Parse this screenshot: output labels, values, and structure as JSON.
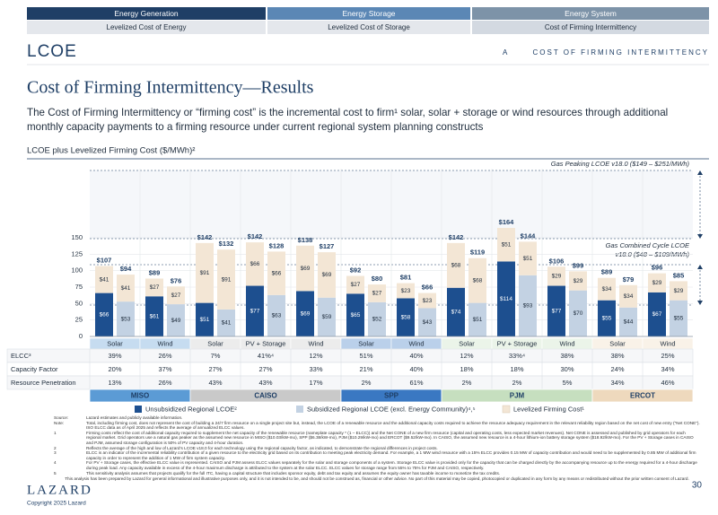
{
  "header": {
    "tabs": [
      "Energy Generation",
      "Energy Storage",
      "Energy System"
    ],
    "subtabs": [
      "Levelized Cost of Energy",
      "Levelized Cost of Storage",
      "Cost of Firming Intermittency"
    ],
    "logo": "LCOE",
    "section": "A",
    "section_title": "COST OF FIRMING INTERMITTENCY"
  },
  "title": "Cost of Firming Intermittency—Results",
  "subtitle": "The Cost of Firming Intermittency or “firming cost” is the incremental cost to firm¹ solar, solar + storage or wind resources through additional monthly capacity payments to a firming resource under current regional system planning constructs",
  "chart_data": {
    "type": "bar",
    "stacked": true,
    "title": "LCOE plus Levelized Firming Cost ($/MWh)²",
    "categories": [
      "Solar",
      "Wind",
      "Solar",
      "PV + Storage",
      "Wind",
      "Solar",
      "Wind",
      "Solar",
      "PV + Storage",
      "Wind",
      "Solar",
      "Wind"
    ],
    "groups": [
      {
        "name": "MISO",
        "size": 2,
        "color": "#5b9bd5"
      },
      {
        "name": "CAISO",
        "size": 3,
        "color": "#c9c9c9"
      },
      {
        "name": "SPP",
        "size": 2,
        "color": "#3a78c2"
      },
      {
        "name": "PJM",
        "size": 3,
        "color": "#c6dfbf"
      },
      {
        "name": "ERCOT",
        "size": 2,
        "color": "#eed9bd"
      }
    ],
    "series": [
      {
        "name": "Unsubsidized Regional LCOE²",
        "color": "#1d4f8f",
        "values": [
          66,
          61,
          51,
          77,
          69,
          65,
          58,
          74,
          114,
          77,
          55,
          67
        ],
        "value_labels": [
          "$66",
          "$61",
          "$51",
          "$77",
          "$69",
          "$65",
          "$58",
          "$74",
          "$114",
          "$77",
          "$55",
          "$67"
        ]
      },
      {
        "name": "Subsidized Regional LCOE (excl. Energy Community)⁴,⁵",
        "color": "#c3d2e3",
        "values": [
          53,
          49,
          41,
          63,
          59,
          52,
          43,
          51,
          93,
          70,
          44,
          55
        ],
        "value_labels": [
          "$53",
          "$49",
          "$41",
          "$63",
          "$59",
          "$52",
          "$43",
          "$51",
          "$93",
          "$70",
          "$44",
          "$55"
        ]
      },
      {
        "name": "Levelized Firming Cost¹",
        "color": "#f3e6d5",
        "values": [
          41,
          27,
          91,
          66,
          69,
          27,
          23,
          68,
          51,
          29,
          34,
          29
        ],
        "value_labels": [
          "$41",
          "$27",
          "$91",
          "$66",
          "$69",
          "$27",
          "$23",
          "$68",
          "$51",
          "$29",
          "$34",
          "$29"
        ]
      }
    ],
    "total_labels": {
      "unsubsidized": [
        "$107",
        "$89",
        "$142",
        "$142",
        "$138",
        "$92",
        "$81",
        "$142",
        "$164",
        "$106",
        "$89",
        "$96"
      ],
      "subsidized": [
        "$94",
        "$76",
        "$132",
        "$128",
        "$127",
        "$80",
        "$66",
        "$119",
        "$144",
        "$99",
        "$79",
        "$85"
      ]
    },
    "annotations": [
      "Gas Peaking LCOE v18.0 ($149 – $251/MWh)",
      "Gas Combined Cycle LCOE",
      "v18.0 ($48 – $109/MWh)"
    ],
    "ylim": [
      0,
      255
    ],
    "yticks": [
      0,
      25,
      50,
      75,
      100,
      125,
      150
    ],
    "grid": true
  },
  "table": {
    "row_labels": [
      "ELCC³",
      "Capacity Factor",
      "Resource Penetration"
    ],
    "rows": [
      [
        "39%",
        "26%",
        "7%",
        "41%⁴",
        "12%",
        "51%",
        "40%",
        "12%",
        "33%⁴",
        "38%",
        "38%",
        "25%"
      ],
      [
        "20%",
        "37%",
        "27%",
        "27%",
        "33%",
        "21%",
        "40%",
        "18%",
        "18%",
        "30%",
        "24%",
        "34%"
      ],
      [
        "13%",
        "26%",
        "43%",
        "43%",
        "17%",
        "2%",
        "61%",
        "2%",
        "2%",
        "5%",
        "34%",
        "46%"
      ]
    ]
  },
  "footnotes": [
    {
      "mark": "Source:",
      "text": "Lazard estimates and publicly available information."
    },
    {
      "mark": "Note:",
      "text": "Total, including firming cost, does not represent the cost of building a 24/7 firm resource on a single project site but, instead, the LCOE of a renewable resource and the additional capacity costs required to achieve the resource adequacy requirement in the relevant reliability region based on the net cost of new entry (“Net CONE”). ISO ELCC data as of April 2025 and reflects the average of annualized ELCC values."
    },
    {
      "mark": "1",
      "text": "Firming costs reflect the cost of additional capacity required to supplement the net capacity of the renewable resource (nameplate capacity * (1 – ELCC)) and the Net CONE of a new firm resource (capital and operating costs, less expected market revenues). Net CONE is assessed and published by grid operators for each regional market. Grid operators use a natural gas peaker as the assumed new resource in MISO ($10.03/kW-mo), SPP ($6.38/kW-mo), PJM ($10.29/kW-mo) and ERCOT ($9.52/kW-mo). In CAISO, the assumed new resource is a 4-hour lithium-ion battery storage system ($18.92/kW-mo). For the PV + Storage cases in CAISO and PJM, assumed storage configuration is 50% of PV capacity and 4-hour duration."
    },
    {
      "mark": "2",
      "text": "Reflects the average of the high and low of Lazard’s LCOE v18.0 for each technology using the regional capacity factor, as indicated, to demonstrate the regional differences in project costs."
    },
    {
      "mark": "3",
      "text": "ELCC is an indicator of the incremental reliability contribution of a given resource to the electricity grid based on its contribution to meeting peak electricity demand. For example, a 1 MW wind resource with a 15% ELCC provides 0.15 MW of capacity contribution and would need to be supplemented by 0.85 MW of additional firm capacity in order to represent the addition of 1 MW of firm system capacity."
    },
    {
      "mark": "4",
      "text": "For PV + Storage cases, the effective ELCC value is represented. CAISO and PJM assess ELCC values separately for the solar and storage components of a system. Storage ELCC value is provided only for the capacity that can be charged directly by the accompanying resource up to the energy required for a 4-hour discharge during peak load. Any capacity available in excess of the 4-hour maximum discharge is attributed to the system at the solar ELCC. ELCC values for storage range from 55% to 75% for PJM and CAISO, respectively."
    },
    {
      "mark": "5",
      "text": "This sensitivity analysis assumes that projects qualify for the full ITC, having a capital structure that includes sponsor equity, debt and tax equity and assumes the equity owner has taxable income to monetize the tax credits."
    }
  ],
  "disclaimer": "This analysis has been prepared by Lazard for general informational and illustrative purposes only, and it is not intended to be, and should not be construed as, financial or other advice. No part of this material may be copied, photocopied or duplicated in any form by any means or redistributed without the prior written consent of Lazard.",
  "footer": {
    "brand": "LAZARD",
    "copyright": "Copyright 2025 Lazard",
    "page": "30"
  }
}
